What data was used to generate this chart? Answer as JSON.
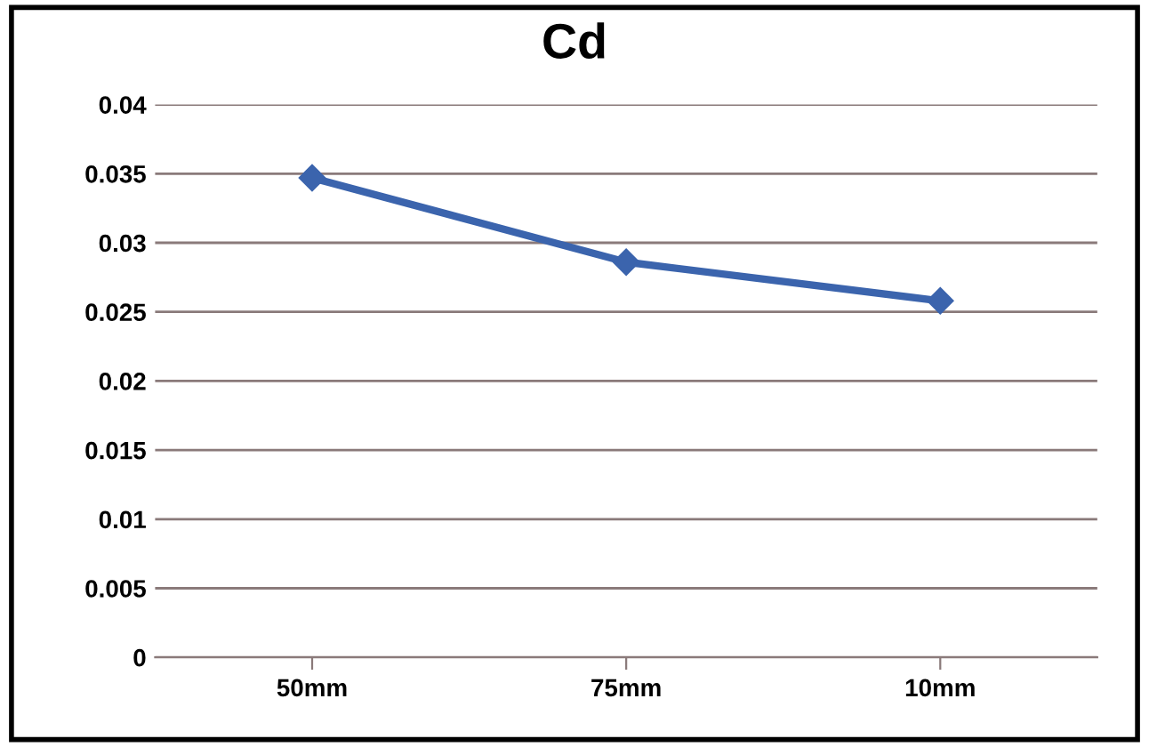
{
  "chart_data": {
    "type": "line",
    "title": "Cd",
    "categories": [
      "50mm",
      "75mm",
      "10mm"
    ],
    "series": [
      {
        "color": "#3b64ad",
        "values": [
          0.0347,
          0.0286,
          0.0258
        ]
      }
    ],
    "ylim": [
      0,
      0.04
    ],
    "yticks": [
      0,
      0.005,
      0.01,
      0.015,
      0.02,
      0.025,
      0.03,
      0.035,
      0.04
    ],
    "grid": "y",
    "marker": "diamond",
    "line_style": "solid"
  }
}
